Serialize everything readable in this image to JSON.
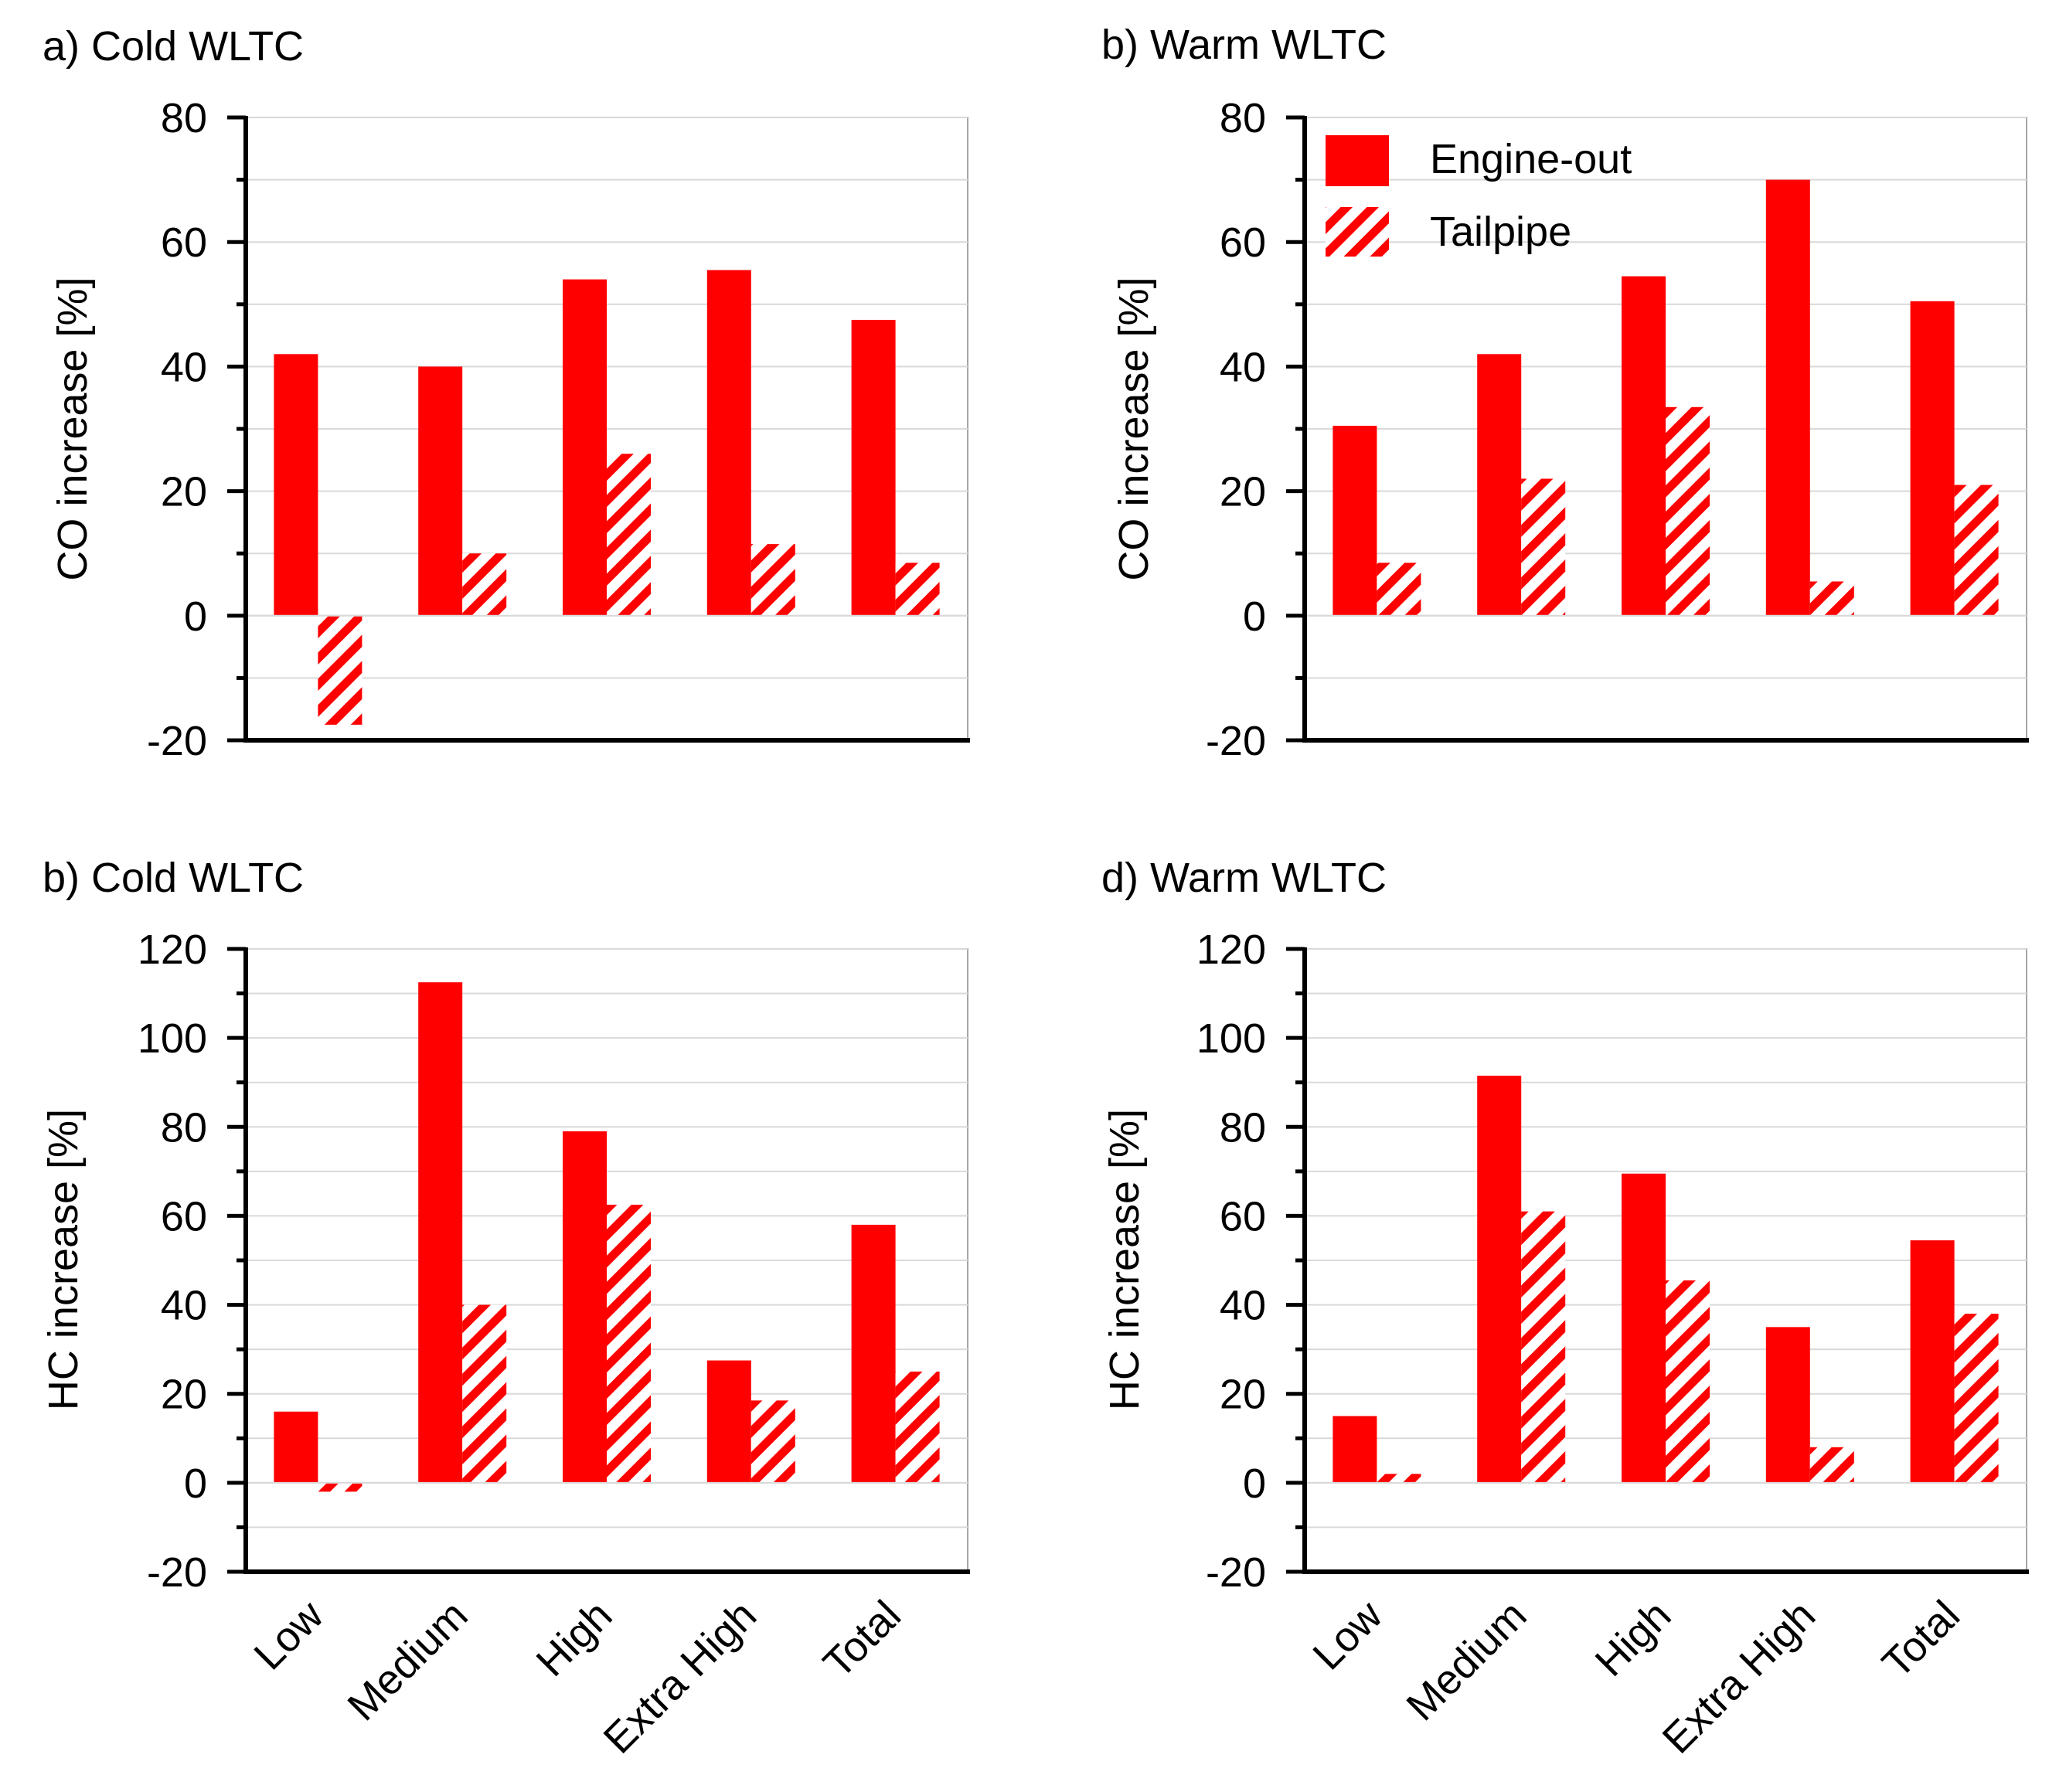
{
  "colors": {
    "bar": "#ff0000",
    "axis": "#000000",
    "grid": "#d9d9d9",
    "frame": "#a6a6a6"
  },
  "legend": {
    "engine_out": "Engine-out",
    "tailpipe": "Tailpipe"
  },
  "chart_data": [
    {
      "type": "bar",
      "panel_title": "a) Cold WLTC",
      "ylabel": "CO increase [%]",
      "ylim": [
        -20,
        80
      ],
      "yticks": [
        -20,
        0,
        20,
        40,
        60,
        80
      ],
      "categories": [
        "Low",
        "Medium",
        "High",
        "Extra High",
        "Total"
      ],
      "series": [
        {
          "name": "Engine-out",
          "values": [
            42,
            40,
            54,
            55.5,
            47.5
          ]
        },
        {
          "name": "Tailpipe",
          "values": [
            -17.5,
            10,
            26,
            11.5,
            8.5
          ]
        }
      ],
      "grid": true,
      "legend": false,
      "show_xticklabels": false
    },
    {
      "type": "bar",
      "panel_title": "b) Warm WLTC",
      "ylabel": "CO increase [%]",
      "ylim": [
        -20,
        80
      ],
      "yticks": [
        -20,
        0,
        20,
        40,
        60,
        80
      ],
      "categories": [
        "Low",
        "Medium",
        "High",
        "Extra High",
        "Total"
      ],
      "series": [
        {
          "name": "Engine-out",
          "values": [
            30.5,
            42,
            54.5,
            70,
            50.5
          ]
        },
        {
          "name": "Tailpipe",
          "values": [
            8.5,
            22,
            33.5,
            5.5,
            21
          ]
        }
      ],
      "grid": true,
      "legend": "top-left",
      "show_xticklabels": false
    },
    {
      "type": "bar",
      "panel_title": "b) Cold WLTC",
      "ylabel": "HC increase [%]",
      "ylim": [
        -20,
        120
      ],
      "yticks": [
        -20,
        0,
        20,
        40,
        60,
        80,
        100,
        120
      ],
      "categories": [
        "Low",
        "Medium",
        "High",
        "Extra High",
        "Total"
      ],
      "series": [
        {
          "name": "Engine-out",
          "values": [
            16,
            112.5,
            79,
            27.5,
            58
          ]
        },
        {
          "name": "Tailpipe",
          "values": [
            -2,
            40,
            62.5,
            18.5,
            25
          ]
        }
      ],
      "grid": true,
      "legend": false,
      "show_xticklabels": true
    },
    {
      "type": "bar",
      "panel_title": "d) Warm WLTC",
      "ylabel": "HC increase [%]",
      "ylim": [
        -20,
        120
      ],
      "yticks": [
        -20,
        0,
        20,
        40,
        60,
        80,
        100,
        120
      ],
      "categories": [
        "Low",
        "Medium",
        "High",
        "Extra High",
        "Total"
      ],
      "series": [
        {
          "name": "Engine-out",
          "values": [
            15,
            91.5,
            69.5,
            35,
            54.5
          ]
        },
        {
          "name": "Tailpipe",
          "values": [
            2,
            61,
            45.5,
            8,
            38
          ]
        }
      ],
      "grid": true,
      "legend": false,
      "show_xticklabels": true
    }
  ]
}
